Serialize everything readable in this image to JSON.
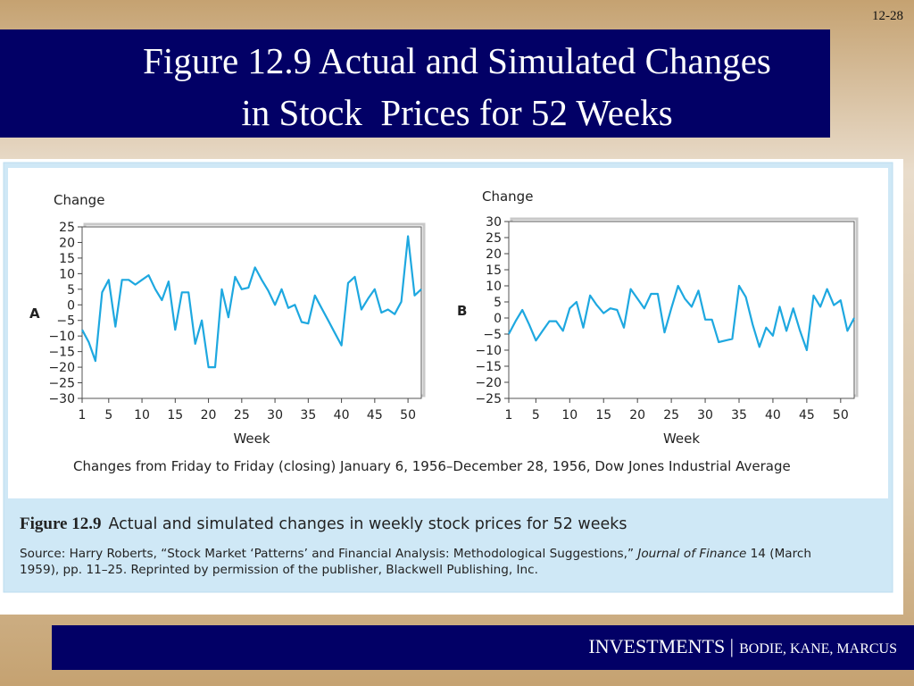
{
  "slide": {
    "page_number": "12-28",
    "title_lines": [
      "Figure 12.9 Actual and Simulated Changes",
      "in Stock  Prices for 52 Weeks"
    ],
    "footer_main": "INVESTMENTS |",
    "footer_sub": "BODIE, KANE, MARCUS"
  },
  "figure": {
    "note": "Changes from Friday to Friday (closing) January 6, 1956–December 28, 1956, Dow Jones Industrial Average",
    "caption_label": "Figure 12.9",
    "caption_text": "Actual and simulated changes in weekly stock prices for 52 weeks",
    "source_line1": [
      "Source: Harry Roberts, “Stock Market ‘Patterns’ and Financial Analysis: Methodological Suggestions,” ",
      "Journal of Finance",
      " 14 (March"
    ],
    "source_line2": "1959), pp. 11–25. Reprinted by permission of the publisher, Blackwell Publishing, Inc."
  },
  "chart_data": [
    {
      "type": "line",
      "panel": "A",
      "y_label": "Change",
      "x_label": "Week",
      "color": "#1ea8e0",
      "x": [
        1,
        2,
        3,
        4,
        5,
        6,
        7,
        8,
        9,
        10,
        11,
        12,
        13,
        14,
        15,
        16,
        17,
        18,
        19,
        20,
        21,
        22,
        23,
        24,
        25,
        26,
        27,
        28,
        29,
        30,
        31,
        32,
        33,
        34,
        35,
        36,
        37,
        38,
        39,
        40,
        41,
        42,
        43,
        44,
        45,
        46,
        47,
        48,
        49,
        50,
        51,
        52
      ],
      "values": [
        -8,
        -12,
        -18,
        4,
        8,
        -7,
        8,
        8,
        6.5,
        8,
        9.5,
        5,
        1.5,
        7.5,
        -8,
        4,
        4,
        -12.5,
        -5,
        -20,
        -20,
        5,
        -4,
        9,
        5,
        5.5,
        12,
        8,
        4.5,
        0,
        5,
        -1,
        0,
        -5.5,
        -6,
        3,
        -1,
        -5,
        -9,
        -13,
        7,
        9,
        -1.5,
        2,
        5,
        -2.5,
        -1.5,
        -3,
        1,
        22,
        3,
        5
      ],
      "xlim": [
        1,
        52
      ],
      "xticks": [
        1,
        5,
        10,
        15,
        20,
        25,
        30,
        35,
        40,
        45,
        50
      ],
      "ylim": [
        -30,
        25
      ],
      "yticks": [
        25,
        20,
        15,
        10,
        5,
        0,
        {
          "value": -5,
          "label": "−5"
        },
        {
          "value": -10,
          "label": "−10"
        },
        {
          "value": -15,
          "label": "−15"
        },
        {
          "value": -20,
          "label": "−20"
        },
        {
          "value": -25,
          "label": "−25"
        },
        {
          "value": -30,
          "label": "−30"
        }
      ]
    },
    {
      "type": "line",
      "panel": "B",
      "y_label": "Change",
      "x_label": "Week",
      "color": "#1ea8e0",
      "x": [
        1,
        2,
        3,
        4,
        5,
        6,
        7,
        8,
        9,
        10,
        11,
        12,
        13,
        14,
        15,
        16,
        17,
        18,
        19,
        20,
        21,
        22,
        23,
        24,
        25,
        26,
        27,
        28,
        29,
        30,
        31,
        32,
        33,
        34,
        35,
        36,
        37,
        38,
        39,
        40,
        41,
        42,
        43,
        44,
        45,
        46,
        47,
        48,
        49,
        50,
        51,
        52
      ],
      "values": [
        -5,
        -1,
        2.5,
        -2,
        -7,
        -4,
        -1,
        -1,
        -4,
        3,
        5,
        -3,
        7,
        4,
        1.5,
        3,
        2.5,
        -3,
        9,
        6,
        3,
        7.5,
        7.5,
        -4.5,
        3,
        10,
        6,
        3.5,
        8.5,
        -0.5,
        -0.5,
        -7.5,
        -7,
        -6.5,
        10,
        6.5,
        -2,
        -9,
        -3,
        -5.5,
        3.5,
        -4,
        3,
        -4,
        -10,
        7,
        3.5,
        9,
        4,
        5.5,
        -4,
        0
      ],
      "xlim": [
        1,
        52
      ],
      "xticks": [
        1,
        5,
        10,
        15,
        20,
        25,
        30,
        35,
        40,
        45,
        50
      ],
      "ylim": [
        -25,
        30
      ],
      "yticks": [
        30,
        25,
        20,
        15,
        10,
        5,
        0,
        {
          "value": -5,
          "label": "−5"
        },
        {
          "value": -10,
          "label": "−10"
        },
        {
          "value": -15,
          "label": "−15"
        },
        {
          "value": -20,
          "label": "−20"
        },
        {
          "value": -25,
          "label": "−25"
        }
      ]
    }
  ]
}
